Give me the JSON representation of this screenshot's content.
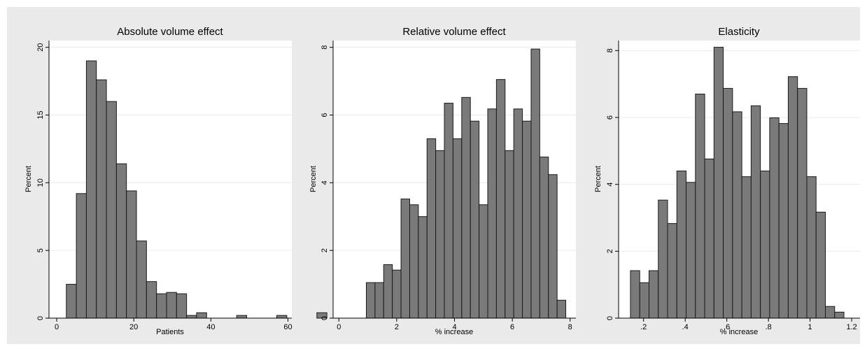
{
  "figure": {
    "background": "#eaeaea",
    "bar_fill": "#7a7a7a",
    "bar_stroke": "#1a1a1a"
  },
  "chart_data": [
    {
      "type": "histogram",
      "title": "Absolute volume effect",
      "xlabel": "Patients",
      "ylabel": "Percent",
      "xlim": [
        -2,
        61
      ],
      "ylim": [
        0,
        20.5
      ],
      "xticks": [
        0,
        20,
        40,
        60
      ],
      "xtick_labels": [
        "0",
        "20",
        "40",
        "60"
      ],
      "yticks": [
        0,
        5,
        10,
        15,
        20
      ],
      "ytick_labels": [
        "0",
        "5",
        "10",
        "15",
        "20"
      ],
      "bin_start": 2.5,
      "bin_width": 2.6,
      "values": [
        2.5,
        9.2,
        19.0,
        17.6,
        16.0,
        11.4,
        9.4,
        5.7,
        2.7,
        1.8,
        1.9,
        1.8,
        0.2,
        0.4,
        0,
        0,
        0,
        0.2,
        0,
        0,
        0,
        0.2,
        0,
        0,
        0,
        0.4
      ],
      "grid": "horizontal"
    },
    {
      "type": "histogram",
      "title": "Relative volume effect",
      "xlabel": "% increase",
      "ylabel": "Percent",
      "xlim": [
        -0.2,
        8.2
      ],
      "ylim": [
        0,
        8.2
      ],
      "xticks": [
        0,
        2,
        4,
        6,
        8
      ],
      "xtick_labels": [
        "0",
        "2",
        "4",
        "6",
        "8"
      ],
      "yticks": [
        0,
        2,
        4,
        6,
        8
      ],
      "ytick_labels": [
        "0",
        "2",
        "4",
        "6",
        "8"
      ],
      "bin_start": 0.95,
      "bin_width": 0.3,
      "values": [
        1.05,
        1.05,
        1.58,
        1.42,
        3.52,
        3.35,
        3.0,
        5.3,
        4.95,
        6.35,
        5.3,
        6.52,
        5.82,
        3.35,
        6.18,
        7.05,
        4.95,
        6.18,
        5.82,
        7.95,
        4.76,
        4.24,
        0.53
      ],
      "grid": "horizontal"
    },
    {
      "type": "histogram",
      "title": "Elasticity",
      "xlabel": "% increase",
      "ylabel": "Percent",
      "xlim": [
        0.08,
        1.24
      ],
      "ylim": [
        0,
        8.3
      ],
      "xticks": [
        0.2,
        0.4,
        0.6,
        0.8,
        1,
        1.2
      ],
      "xtick_labels": [
        ".2",
        ".4",
        ".6",
        ".8",
        "1",
        "1.2"
      ],
      "yticks": [
        0,
        2,
        4,
        6,
        8
      ],
      "ytick_labels": [
        "0",
        "2",
        "4",
        "6",
        "8"
      ],
      "bin_start": 0.137,
      "bin_width": 0.0446,
      "values": [
        1.42,
        1.06,
        1.42,
        3.53,
        2.83,
        4.4,
        4.06,
        6.7,
        4.76,
        8.1,
        6.87,
        6.17,
        4.23,
        6.35,
        4.4,
        5.99,
        5.82,
        7.22,
        6.87,
        4.23,
        3.17,
        0.35,
        0.18
      ],
      "grid": "horizontal"
    }
  ]
}
